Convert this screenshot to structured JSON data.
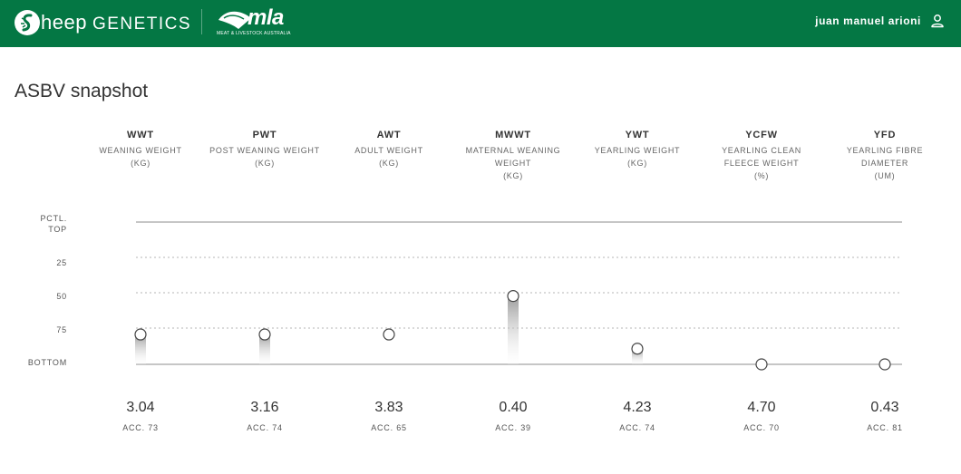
{
  "header": {
    "brand_initial": "S",
    "brand_lower": "heep",
    "brand_upper": "GENETICS",
    "partner_logo": "mla",
    "partner_sub": "MEAT & LIVESTOCK AUSTRALIA",
    "user_name": "juan manuel arioni",
    "user_icon": "user-icon",
    "bg_color": "#047744"
  },
  "page": {
    "title": "ASBV snapshot"
  },
  "y_labels": [
    {
      "key": "top",
      "lines": [
        "PCTL.",
        "TOP"
      ]
    },
    {
      "key": "25",
      "lines": [
        "25"
      ]
    },
    {
      "key": "50",
      "lines": [
        "50"
      ]
    },
    {
      "key": "75",
      "lines": [
        "75"
      ]
    },
    {
      "key": "bottom",
      "lines": [
        "BOTTOM"
      ]
    }
  ],
  "chart_data": {
    "type": "scatter",
    "y_axis": "percentile band (TOP, 25, 50, 75, BOTTOM)",
    "categories": [
      "WWT",
      "PWT",
      "AWT",
      "MWWT",
      "YWT",
      "YCFW",
      "YFD"
    ],
    "percentile_position": [
      79,
      79,
      79,
      52,
      89,
      100,
      100
    ],
    "bar_shown": [
      true,
      true,
      false,
      true,
      true,
      false,
      false
    ]
  },
  "traits": [
    {
      "abbr": "WWT",
      "desc": [
        "WEANING WEIGHT",
        "(KG)"
      ],
      "value": "3.04",
      "acc": "ACC. 73"
    },
    {
      "abbr": "PWT",
      "desc": [
        "POST WEANING WEIGHT",
        "(KG)"
      ],
      "value": "3.16",
      "acc": "ACC. 74"
    },
    {
      "abbr": "AWT",
      "desc": [
        "ADULT WEIGHT",
        "(KG)"
      ],
      "value": "3.83",
      "acc": "ACC. 65"
    },
    {
      "abbr": "MWWT",
      "desc": [
        "MATERNAL WEANING",
        "WEIGHT",
        "(KG)"
      ],
      "value": "0.40",
      "acc": "ACC. 39"
    },
    {
      "abbr": "YWT",
      "desc": [
        "YEARLING WEIGHT",
        "(KG)"
      ],
      "value": "4.23",
      "acc": "ACC. 74"
    },
    {
      "abbr": "YCFW",
      "desc": [
        "YEARLING CLEAN",
        "FLEECE WEIGHT",
        "(%)"
      ],
      "value": "4.70",
      "acc": "ACC. 70"
    },
    {
      "abbr": "YFD",
      "desc": [
        "YEARLING FIBRE",
        "DIAMETER",
        "(UM)"
      ],
      "value": "0.43",
      "acc": "ACC. 81"
    }
  ]
}
